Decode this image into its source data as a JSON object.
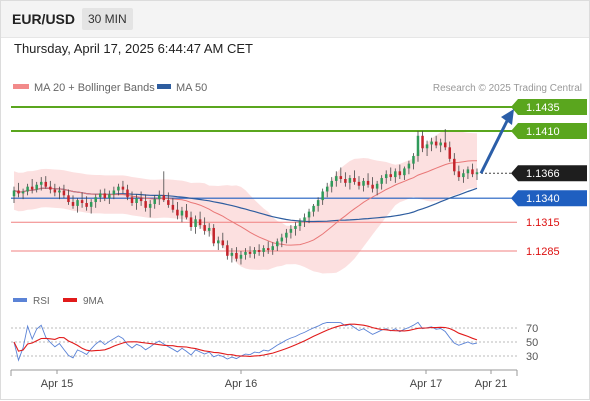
{
  "header": {
    "pair": "EUR/USD",
    "timeframe": "30 MIN"
  },
  "timestamp": "Thursday, April 17, 2025 6:44:47 AM CET",
  "legend": {
    "ma20": "MA 20 + Bollinger Bands",
    "ma50": "MA 50",
    "credit": "Research © 2025 Trading Central",
    "rsi": "RSI",
    "rsi_ma": "9MA"
  },
  "colors": {
    "ma20": "#e97777",
    "ma50": "#2e5d9f",
    "bb_fill": "#fbd6d6",
    "resistance": "#5aa61e",
    "support": "#1f5fc0",
    "support_minor": "#f08080",
    "candle_up": "#2f9a5a",
    "candle_down": "#c4242c",
    "arrow": "#2b5ea8",
    "rsi": "#5b83d6",
    "rsi_ma": "#e11b1b"
  },
  "chart_data": [
    {
      "type": "candlestick",
      "title": "EUR/USD 30 MIN",
      "x_ticks": [
        "Apr 15",
        "Apr 16",
        "Apr 17",
        "Apr 21"
      ],
      "y_range": [
        1.125,
        1.145
      ],
      "candles_ohlc": [
        [
          1.1342,
          1.1352,
          1.1335,
          1.1348
        ],
        [
          1.1348,
          1.1356,
          1.1341,
          1.1345
        ],
        [
          1.1345,
          1.135,
          1.1339,
          1.1347
        ],
        [
          1.1347,
          1.1355,
          1.1343,
          1.1352
        ],
        [
          1.1352,
          1.136,
          1.1345,
          1.1349
        ],
        [
          1.1349,
          1.1357,
          1.1346,
          1.1354
        ],
        [
          1.1354,
          1.1362,
          1.1348,
          1.1357
        ],
        [
          1.1357,
          1.1363,
          1.135,
          1.1352
        ],
        [
          1.1352,
          1.1358,
          1.1345,
          1.1349
        ],
        [
          1.1349,
          1.1355,
          1.1342,
          1.1346
        ],
        [
          1.1346,
          1.1352,
          1.1339,
          1.1348
        ],
        [
          1.1348,
          1.1354,
          1.134,
          1.1343
        ],
        [
          1.1343,
          1.1349,
          1.1333,
          1.1336
        ],
        [
          1.1336,
          1.1343,
          1.1329,
          1.1332
        ],
        [
          1.1332,
          1.134,
          1.1325,
          1.1338
        ],
        [
          1.1338,
          1.1346,
          1.133,
          1.1335
        ],
        [
          1.1335,
          1.1342,
          1.1327,
          1.1331
        ],
        [
          1.1331,
          1.1339,
          1.1324,
          1.1336
        ],
        [
          1.1336,
          1.1344,
          1.133,
          1.1341
        ],
        [
          1.1341,
          1.1349,
          1.1336,
          1.1345
        ],
        [
          1.1345,
          1.135,
          1.1337,
          1.134
        ],
        [
          1.134,
          1.1348,
          1.1334,
          1.1344
        ],
        [
          1.1344,
          1.1352,
          1.1339,
          1.1348
        ],
        [
          1.1348,
          1.1355,
          1.1343,
          1.1352
        ],
        [
          1.1352,
          1.1358,
          1.1345,
          1.1349
        ],
        [
          1.1349,
          1.1354,
          1.1338,
          1.1341
        ],
        [
          1.1341,
          1.1347,
          1.1332,
          1.1335
        ],
        [
          1.1335,
          1.1344,
          1.1328,
          1.134
        ],
        [
          1.134,
          1.1347,
          1.1332,
          1.1337
        ],
        [
          1.1337,
          1.1344,
          1.1326,
          1.133
        ],
        [
          1.133,
          1.1338,
          1.132,
          1.1334
        ],
        [
          1.1334,
          1.1343,
          1.1329,
          1.1339
        ],
        [
          1.1339,
          1.1348,
          1.1333,
          1.1343
        ],
        [
          1.1343,
          1.1368,
          1.1336,
          1.1338
        ],
        [
          1.1338,
          1.1346,
          1.133,
          1.1333
        ],
        [
          1.1333,
          1.134,
          1.1325,
          1.1328
        ],
        [
          1.1328,
          1.1336,
          1.1318,
          1.1322
        ],
        [
          1.1322,
          1.1331,
          1.1315,
          1.1327
        ],
        [
          1.1327,
          1.1334,
          1.1318,
          1.132
        ],
        [
          1.132,
          1.1326,
          1.1306,
          1.131
        ],
        [
          1.131,
          1.1322,
          1.1303,
          1.1318
        ],
        [
          1.1318,
          1.1326,
          1.1308,
          1.1312
        ],
        [
          1.1312,
          1.132,
          1.1302,
          1.1306
        ],
        [
          1.1306,
          1.1314,
          1.13,
          1.1309
        ],
        [
          1.1309,
          1.1313,
          1.129,
          1.1293
        ],
        [
          1.1293,
          1.13,
          1.1286,
          1.1296
        ],
        [
          1.1296,
          1.1304,
          1.1288,
          1.1291
        ],
        [
          1.1291,
          1.1296,
          1.1276,
          1.128
        ],
        [
          1.128,
          1.1288,
          1.1273,
          1.1283
        ],
        [
          1.1283,
          1.1289,
          1.1274,
          1.1277
        ],
        [
          1.1277,
          1.1285,
          1.1271,
          1.1281
        ],
        [
          1.1281,
          1.1288,
          1.1276,
          1.1284
        ],
        [
          1.1284,
          1.129,
          1.1278,
          1.1282
        ],
        [
          1.1282,
          1.1289,
          1.1277,
          1.1286
        ],
        [
          1.1286,
          1.1292,
          1.128,
          1.1284
        ],
        [
          1.1284,
          1.1291,
          1.1279,
          1.1288
        ],
        [
          1.1288,
          1.1295,
          1.1282,
          1.1286
        ],
        [
          1.1286,
          1.1294,
          1.1281,
          1.129
        ],
        [
          1.129,
          1.1298,
          1.1285,
          1.1295
        ],
        [
          1.1295,
          1.1303,
          1.1289,
          1.1299
        ],
        [
          1.1299,
          1.1308,
          1.1293,
          1.1304
        ],
        [
          1.1304,
          1.1312,
          1.1298,
          1.1308
        ],
        [
          1.1308,
          1.1315,
          1.1301,
          1.1311
        ],
        [
          1.1311,
          1.1319,
          1.1306,
          1.1316
        ],
        [
          1.1316,
          1.1324,
          1.131,
          1.132
        ],
        [
          1.132,
          1.1329,
          1.1314,
          1.1326
        ],
        [
          1.1326,
          1.1334,
          1.1321,
          1.1332
        ],
        [
          1.1332,
          1.1341,
          1.1326,
          1.1338
        ],
        [
          1.1338,
          1.135,
          1.1333,
          1.1347
        ],
        [
          1.1347,
          1.1356,
          1.1341,
          1.1352
        ],
        [
          1.1352,
          1.1362,
          1.1346,
          1.1358
        ],
        [
          1.1358,
          1.1368,
          1.1352,
          1.1363
        ],
        [
          1.1363,
          1.1372,
          1.1356,
          1.136
        ],
        [
          1.136,
          1.1367,
          1.1352,
          1.1356
        ],
        [
          1.1356,
          1.1364,
          1.1349,
          1.1361
        ],
        [
          1.1361,
          1.1369,
          1.1354,
          1.1357
        ],
        [
          1.1357,
          1.1363,
          1.1349,
          1.1353
        ],
        [
          1.1353,
          1.1361,
          1.1347,
          1.1358
        ],
        [
          1.1358,
          1.1366,
          1.1351,
          1.1354
        ],
        [
          1.1354,
          1.1362,
          1.1346,
          1.135
        ],
        [
          1.135,
          1.1358,
          1.1343,
          1.1355
        ],
        [
          1.1355,
          1.1364,
          1.1349,
          1.1361
        ],
        [
          1.1361,
          1.1369,
          1.1355,
          1.1365
        ],
        [
          1.1365,
          1.1372,
          1.1358,
          1.1362
        ],
        [
          1.1362,
          1.1371,
          1.1356,
          1.1368
        ],
        [
          1.1368,
          1.1375,
          1.136,
          1.1364
        ],
        [
          1.1364,
          1.1373,
          1.1359,
          1.1371
        ],
        [
          1.1371,
          1.1379,
          1.1365,
          1.1376
        ],
        [
          1.1376,
          1.1387,
          1.137,
          1.1384
        ],
        [
          1.1384,
          1.141,
          1.1378,
          1.1405
        ],
        [
          1.1405,
          1.141,
          1.1388,
          1.1392
        ],
        [
          1.1392,
          1.14,
          1.1384,
          1.1396
        ],
        [
          1.1396,
          1.1403,
          1.1389,
          1.1399
        ],
        [
          1.1399,
          1.1405,
          1.1392,
          1.1395
        ],
        [
          1.1395,
          1.1402,
          1.1388,
          1.1398
        ],
        [
          1.1398,
          1.1412,
          1.139,
          1.1393
        ],
        [
          1.1393,
          1.1399,
          1.1378,
          1.1381
        ],
        [
          1.1381,
          1.1387,
          1.1364,
          1.1368
        ],
        [
          1.1368,
          1.1374,
          1.1358,
          1.1362
        ],
        [
          1.1362,
          1.137,
          1.1356,
          1.1366
        ],
        [
          1.1366,
          1.1373,
          1.136,
          1.137
        ],
        [
          1.137,
          1.1376,
          1.1362,
          1.1365
        ],
        [
          1.1365,
          1.1371,
          1.1359,
          1.1367
        ]
      ],
      "overlays": [
        "MA 20 + Bollinger Bands",
        "MA 50"
      ],
      "levels": [
        {
          "price": 1.1435,
          "label": "1.1435",
          "kind": "resistance"
        },
        {
          "price": 1.141,
          "label": "1.1410",
          "kind": "resistance"
        },
        {
          "price": 1.1366,
          "label": "1.1366",
          "kind": "current"
        },
        {
          "price": 1.134,
          "label": "1.1340",
          "kind": "support"
        },
        {
          "price": 1.1315,
          "label": "1.1315",
          "kind": "minor"
        },
        {
          "price": 1.1285,
          "label": "1.1285",
          "kind": "minor"
        }
      ],
      "projection": {
        "from": 1.1366,
        "to": 1.1435,
        "direction": "up"
      }
    },
    {
      "type": "line",
      "series": [
        {
          "name": "RSI"
        },
        {
          "name": "9MA"
        }
      ],
      "y_ticks": [
        70,
        50,
        30
      ],
      "ylim": [
        20,
        80
      ]
    }
  ]
}
